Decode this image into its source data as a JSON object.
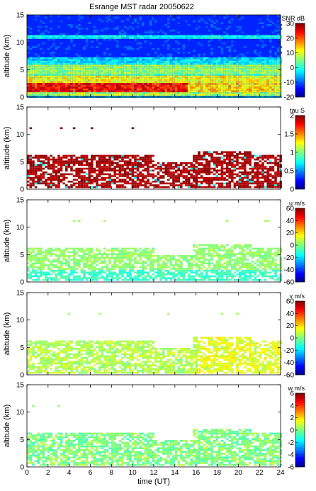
{
  "figure": {
    "title": "Esrange MST radar 20050622"
  },
  "chart_data": [
    {
      "type": "heatmap",
      "title": "Esrange MST radar 20050622",
      "ylabel": "altitude (km)",
      "xlabel": "",
      "xlim": [
        0,
        24
      ],
      "ylim": [
        0,
        15
      ],
      "x_ticks": [
        0,
        2,
        4,
        6,
        8,
        10,
        12,
        14,
        16,
        18,
        20,
        22,
        24
      ],
      "y_ticks": [
        0,
        5,
        10,
        15
      ],
      "x_tick_labels_shown": false,
      "colorbar": {
        "label": "SNR dB",
        "min": -20,
        "max": 30,
        "ticks": [
          -20,
          -10,
          0,
          10,
          20,
          30
        ]
      },
      "description_of_field": "noise floor near -10 dB above 7 km, enhanced layers near 11 km, strongest echoes 1-4 km",
      "layers_km": [
        {
          "alt": 2.0,
          "x_from": 0,
          "x_to": 15,
          "value": 25
        },
        {
          "alt": 3.5,
          "x_from": 0,
          "x_to": 24,
          "value": 12
        },
        {
          "alt": 5.5,
          "x_from": 0,
          "x_to": 24,
          "value": 5
        },
        {
          "alt": 11.0,
          "x_from": 0,
          "x_to": 24,
          "value": 0
        }
      ]
    },
    {
      "type": "heatmap",
      "ylabel": "altitude (km)",
      "xlabel": "",
      "xlim": [
        0,
        24
      ],
      "ylim": [
        0,
        15
      ],
      "x_ticks": [
        0,
        2,
        4,
        6,
        8,
        10,
        12,
        14,
        16,
        18,
        20,
        22,
        24
      ],
      "y_ticks": [
        0,
        5,
        10,
        15
      ],
      "x_tick_labels_shown": false,
      "colorbar": {
        "label": "tau S",
        "min": 0,
        "max": 2,
        "ticks": [
          0,
          0.5,
          1,
          1.5,
          2
        ]
      },
      "data_band_km": [
        0.5,
        7
      ],
      "dominant_value": 2.0,
      "sparse_points_alt_km": 11.3
    },
    {
      "type": "heatmap",
      "ylabel": "altitude (km)",
      "xlabel": "",
      "xlim": [
        0,
        24
      ],
      "ylim": [
        0,
        15
      ],
      "x_ticks": [
        0,
        2,
        4,
        6,
        8,
        10,
        12,
        14,
        16,
        18,
        20,
        22,
        24
      ],
      "y_ticks": [
        0,
        5,
        10,
        15
      ],
      "x_tick_labels_shown": false,
      "colorbar": {
        "label": "u m/s",
        "min": -60,
        "max": 60,
        "ticks": [
          -60,
          -40,
          -20,
          0,
          20,
          40,
          60
        ]
      },
      "data_band_km": [
        0.5,
        7
      ],
      "dominant_value": 5
    },
    {
      "type": "heatmap",
      "ylabel": "altitude (km)",
      "xlabel": "",
      "xlim": [
        0,
        24
      ],
      "ylim": [
        0,
        15
      ],
      "x_ticks": [
        0,
        2,
        4,
        6,
        8,
        10,
        12,
        14,
        16,
        18,
        20,
        22,
        24
      ],
      "y_ticks": [
        0,
        5,
        10,
        15
      ],
      "x_tick_labels_shown": false,
      "colorbar": {
        "label": "v m/s",
        "min": -60,
        "max": 60,
        "ticks": [
          -60,
          -40,
          -20,
          0,
          20,
          40,
          60
        ]
      },
      "data_band_km": [
        0.5,
        7
      ],
      "dominant_value": 8
    },
    {
      "type": "heatmap",
      "ylabel": "altitude (km)",
      "xlabel": "time (UT)",
      "xlim": [
        0,
        24
      ],
      "ylim": [
        0,
        15
      ],
      "x_ticks": [
        0,
        2,
        4,
        6,
        8,
        10,
        12,
        14,
        16,
        18,
        20,
        22,
        24
      ],
      "x_tick_labels": [
        "0",
        "2",
        "4",
        "6",
        "8",
        "10",
        "12",
        "14",
        "16",
        "18",
        "20",
        "22",
        "24"
      ],
      "y_ticks": [
        0,
        5,
        10,
        15
      ],
      "x_tick_labels_shown": true,
      "colorbar": {
        "label": "w m/s",
        "min": -6,
        "max": 6,
        "ticks": [
          -6,
          -4,
          -2,
          0,
          2,
          4,
          6
        ]
      },
      "data_band_km": [
        0.5,
        7
      ],
      "dominant_value": 0
    }
  ]
}
